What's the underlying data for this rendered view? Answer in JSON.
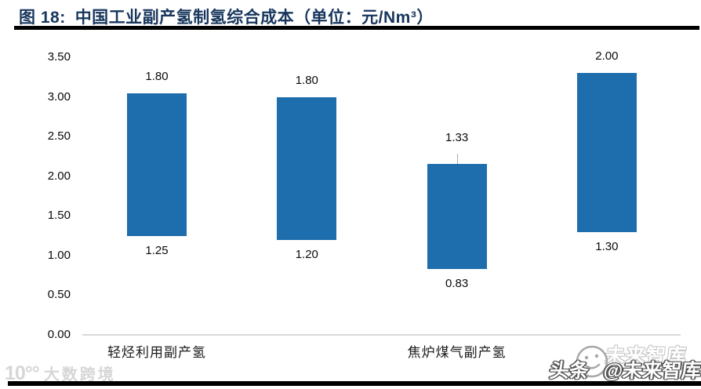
{
  "header": {
    "figure_label": "图 18:",
    "title": "中国工业副产氢制氢综合成本（单位：元/Nm³）"
  },
  "chart_data": {
    "type": "bar",
    "subtype": "floating-range-column",
    "title": "中国工业副产氢制氢综合成本",
    "unit": "元/Nm³",
    "xlabel": "",
    "ylabel": "",
    "ylim": [
      0,
      3.5
    ],
    "y_ticks": [
      "3.50",
      "3.00",
      "2.50",
      "2.00",
      "1.50",
      "1.00",
      "0.50",
      "0.00"
    ],
    "grid": false,
    "legend": "none",
    "bar_color": "#1e6dac",
    "bars": [
      {
        "category": "轻烃利用副产氢",
        "range_low": 1.25,
        "range_span": 1.8,
        "range_high": 3.05,
        "top_label": "1.80",
        "bottom_label": "1.25",
        "leader_line": false
      },
      {
        "category": "",
        "range_low": 1.2,
        "range_span": 1.8,
        "range_high": 3.0,
        "top_label": "1.80",
        "bottom_label": "1.20",
        "leader_line": false
      },
      {
        "category": "焦炉煤气副产氢",
        "range_low": 0.83,
        "range_span": 1.33,
        "range_high": 2.16,
        "top_label": "1.33",
        "bottom_label": "0.83",
        "leader_line": true
      },
      {
        "category": "",
        "range_low": 1.3,
        "range_span": 2.0,
        "range_high": 3.3,
        "top_label": "2.00",
        "bottom_label": "1.30",
        "leader_line": false
      }
    ]
  },
  "watermarks": {
    "bottom_left": {
      "logo": "10°°",
      "text": "大数跨境"
    },
    "bottom_right": {
      "ghost_text": "未来智库",
      "main_prefix": "头条",
      "main_suffix": "@未来智库"
    }
  },
  "colors": {
    "title": "#17365d",
    "bar": "#1e6dac",
    "axis_line": "#d8d8d8",
    "rule": "#000000",
    "watermark_gray": "#d6d6d6"
  }
}
